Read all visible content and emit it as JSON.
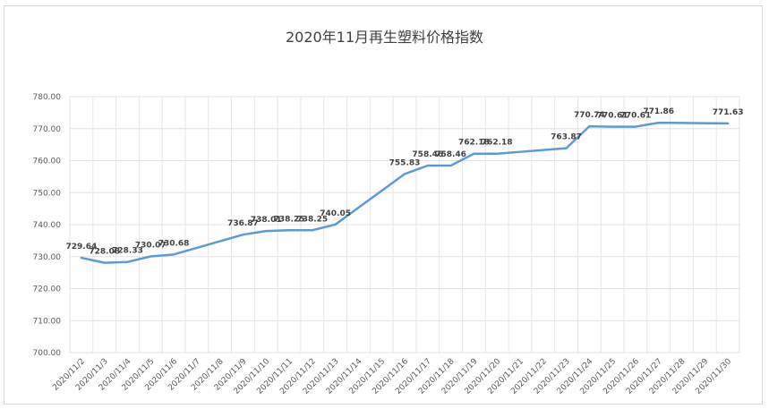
{
  "chart_data": {
    "type": "line",
    "title": "2020年11月再生塑料价格指数",
    "xlabel": "",
    "ylabel": "",
    "ylim": [
      700,
      780
    ],
    "y_ticks": [
      "700.00",
      "710.00",
      "720.00",
      "730.00",
      "740.00",
      "750.00",
      "760.00",
      "770.00",
      "780.00"
    ],
    "grid": "horizontal-and-vertical",
    "legend": "none",
    "line_color": "#5b9bd5",
    "categories": [
      "2020/11/2",
      "2020/11/3",
      "2020/11/4",
      "2020/11/5",
      "2020/11/6",
      "2020/11/7",
      "2020/11/8",
      "2020/11/9",
      "2020/11/10",
      "2020/11/11",
      "2020/11/12",
      "2020/11/13",
      "2020/11/14",
      "2020/11/15",
      "2020/11/16",
      "2020/11/17",
      "2020/11/18",
      "2020/11/19",
      "2020/11/20",
      "2020/11/21",
      "2020/11/22",
      "2020/11/23",
      "2020/11/24",
      "2020/11/25",
      "2020/11/26",
      "2020/11/27",
      "2020/11/28",
      "2020/11/29",
      "2020/11/30"
    ],
    "series": [
      {
        "values": [
          729.64,
          728.08,
          728.33,
          730.07,
          730.68,
          null,
          null,
          736.87,
          738.01,
          738.25,
          738.25,
          740.05,
          null,
          null,
          755.83,
          758.46,
          758.46,
          762.18,
          762.18,
          null,
          null,
          763.87,
          770.74,
          770.61,
          770.61,
          771.86,
          null,
          null,
          771.63
        ]
      }
    ],
    "data_labels": [
      "729.64",
      "728.08",
      "728.33",
      "730.07",
      "730.68",
      "",
      "",
      "736.87",
      "738.01",
      "738.25",
      "738.25",
      "740.05",
      "",
      "",
      "755.83",
      "758.46",
      "758.46",
      "762.18",
      "762.18",
      "",
      "",
      "763.87",
      "770.74",
      "770.61",
      "770.61",
      "771.86",
      "",
      "",
      "771.63"
    ]
  }
}
